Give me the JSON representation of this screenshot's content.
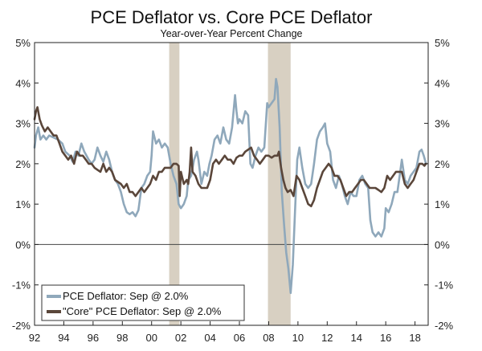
{
  "chart_data": {
    "type": "line",
    "title": "PCE Deflator vs. Core PCE Deflator",
    "subtitle": "Year-over-Year Percent Change",
    "y_ticks": [
      "5%",
      "4%",
      "3%",
      "2%",
      "1%",
      "0%",
      "-1%",
      "-2%"
    ],
    "y_tick_values": [
      5,
      4,
      3,
      2,
      1,
      0,
      -1,
      -2
    ],
    "ylim": [
      -2,
      5
    ],
    "x_ticks": [
      "92",
      "94",
      "96",
      "98",
      "00",
      "02",
      "04",
      "06",
      "08",
      "10",
      "12",
      "14",
      "16",
      "18"
    ],
    "x_tick_values": [
      1992,
      1994,
      1996,
      1998,
      2000,
      2002,
      2004,
      2006,
      2008,
      2010,
      2012,
      2014,
      2016,
      2018
    ],
    "xlim": [
      1992,
      2018.9
    ],
    "recessions": [
      [
        2001.2,
        2001.9
      ],
      [
        2007.95,
        2009.5
      ]
    ],
    "legend_position": "bottom-left",
    "series": [
      {
        "name": "PCE Deflator: Sep @ 2.0%",
        "color": "#8fa8bb",
        "points": [
          [
            1992.0,
            2.4
          ],
          [
            1992.1,
            2.7
          ],
          [
            1992.25,
            2.9
          ],
          [
            1992.4,
            2.6
          ],
          [
            1992.6,
            2.7
          ],
          [
            1992.8,
            2.6
          ],
          [
            1993.0,
            2.7
          ],
          [
            1993.3,
            2.65
          ],
          [
            1993.6,
            2.6
          ],
          [
            1993.9,
            2.5
          ],
          [
            1994.1,
            2.3
          ],
          [
            1994.4,
            2.2
          ],
          [
            1994.6,
            2.05
          ],
          [
            1994.8,
            2.3
          ],
          [
            1995.0,
            2.2
          ],
          [
            1995.2,
            2.5
          ],
          [
            1995.4,
            2.3
          ],
          [
            1995.7,
            2.1
          ],
          [
            1995.9,
            2.0
          ],
          [
            1996.1,
            2.1
          ],
          [
            1996.3,
            2.4
          ],
          [
            1996.5,
            2.2
          ],
          [
            1996.7,
            2.05
          ],
          [
            1996.9,
            2.3
          ],
          [
            1997.1,
            2.1
          ],
          [
            1997.3,
            1.8
          ],
          [
            1997.5,
            1.6
          ],
          [
            1997.7,
            1.5
          ],
          [
            1997.9,
            1.3
          ],
          [
            1998.1,
            1.0
          ],
          [
            1998.3,
            0.8
          ],
          [
            1998.5,
            0.75
          ],
          [
            1998.7,
            0.8
          ],
          [
            1998.9,
            0.7
          ],
          [
            1999.1,
            0.85
          ],
          [
            1999.3,
            1.4
          ],
          [
            1999.5,
            1.5
          ],
          [
            1999.7,
            1.7
          ],
          [
            1999.9,
            1.8
          ],
          [
            2000.0,
            2.2
          ],
          [
            2000.1,
            2.8
          ],
          [
            2000.3,
            2.5
          ],
          [
            2000.5,
            2.6
          ],
          [
            2000.7,
            2.4
          ],
          [
            2000.9,
            2.5
          ],
          [
            2001.1,
            2.4
          ],
          [
            2001.3,
            2.0
          ],
          [
            2001.5,
            1.7
          ],
          [
            2001.7,
            1.5
          ],
          [
            2001.85,
            1.0
          ],
          [
            2002.0,
            0.9
          ],
          [
            2002.2,
            1.0
          ],
          [
            2002.4,
            1.2
          ],
          [
            2002.5,
            1.6
          ],
          [
            2002.7,
            1.7
          ],
          [
            2002.9,
            2.1
          ],
          [
            2003.1,
            2.3
          ],
          [
            2003.2,
            2.1
          ],
          [
            2003.4,
            1.5
          ],
          [
            2003.6,
            1.8
          ],
          [
            2003.8,
            1.7
          ],
          [
            2003.95,
            2.0
          ],
          [
            2004.1,
            2.2
          ],
          [
            2004.3,
            2.6
          ],
          [
            2004.5,
            2.7
          ],
          [
            2004.7,
            2.5
          ],
          [
            2004.9,
            2.9
          ],
          [
            2005.1,
            2.6
          ],
          [
            2005.3,
            2.5
          ],
          [
            2005.5,
            2.9
          ],
          [
            2005.7,
            3.7
          ],
          [
            2005.8,
            3.3
          ],
          [
            2005.9,
            3.0
          ],
          [
            2006.0,
            3.1
          ],
          [
            2006.2,
            3.0
          ],
          [
            2006.4,
            3.3
          ],
          [
            2006.6,
            3.2
          ],
          [
            2006.75,
            2.0
          ],
          [
            2006.9,
            1.9
          ],
          [
            2007.1,
            2.2
          ],
          [
            2007.3,
            2.4
          ],
          [
            2007.5,
            2.3
          ],
          [
            2007.7,
            2.4
          ],
          [
            2007.9,
            3.5
          ],
          [
            2008.0,
            3.4
          ],
          [
            2008.2,
            3.5
          ],
          [
            2008.4,
            3.6
          ],
          [
            2008.5,
            4.1
          ],
          [
            2008.6,
            3.9
          ],
          [
            2008.75,
            2.9
          ],
          [
            2008.9,
            1.3
          ],
          [
            2009.05,
            0.5
          ],
          [
            2009.2,
            -0.2
          ],
          [
            2009.35,
            -0.6
          ],
          [
            2009.5,
            -1.2
          ],
          [
            2009.65,
            -0.5
          ],
          [
            2009.8,
            0.8
          ],
          [
            2009.95,
            2.1
          ],
          [
            2010.1,
            2.4
          ],
          [
            2010.3,
            1.9
          ],
          [
            2010.5,
            1.5
          ],
          [
            2010.7,
            1.4
          ],
          [
            2010.9,
            1.5
          ],
          [
            2011.1,
            2.0
          ],
          [
            2011.3,
            2.6
          ],
          [
            2011.5,
            2.8
          ],
          [
            2011.7,
            2.9
          ],
          [
            2011.85,
            3.0
          ],
          [
            2012.0,
            2.5
          ],
          [
            2012.2,
            2.3
          ],
          [
            2012.4,
            1.6
          ],
          [
            2012.6,
            1.4
          ],
          [
            2012.8,
            1.7
          ],
          [
            2013.0,
            1.5
          ],
          [
            2013.2,
            1.2
          ],
          [
            2013.4,
            1.0
          ],
          [
            2013.6,
            1.3
          ],
          [
            2013.8,
            1.2
          ],
          [
            2014.0,
            1.2
          ],
          [
            2014.2,
            1.6
          ],
          [
            2014.4,
            1.7
          ],
          [
            2014.6,
            1.5
          ],
          [
            2014.8,
            1.4
          ],
          [
            2014.95,
            0.6
          ],
          [
            2015.1,
            0.3
          ],
          [
            2015.3,
            0.2
          ],
          [
            2015.5,
            0.3
          ],
          [
            2015.7,
            0.2
          ],
          [
            2015.9,
            0.4
          ],
          [
            2016.0,
            0.9
          ],
          [
            2016.2,
            0.8
          ],
          [
            2016.4,
            1.0
          ],
          [
            2016.6,
            1.3
          ],
          [
            2016.8,
            1.3
          ],
          [
            2016.95,
            1.7
          ],
          [
            2017.1,
            2.1
          ],
          [
            2017.3,
            1.6
          ],
          [
            2017.5,
            1.5
          ],
          [
            2017.7,
            1.7
          ],
          [
            2017.9,
            1.8
          ],
          [
            2018.1,
            1.9
          ],
          [
            2018.3,
            2.3
          ],
          [
            2018.45,
            2.35
          ],
          [
            2018.6,
            2.2
          ],
          [
            2018.75,
            2.0
          ]
        ]
      },
      {
        "name": "\"Core\" PCE Deflator: Sep @ 2.0%",
        "color": "#5a463a",
        "points": [
          [
            1992.0,
            3.1
          ],
          [
            1992.1,
            3.3
          ],
          [
            1992.2,
            3.4
          ],
          [
            1992.35,
            3.1
          ],
          [
            1992.5,
            2.95
          ],
          [
            1992.7,
            2.8
          ],
          [
            1992.9,
            2.9
          ],
          [
            1993.1,
            2.8
          ],
          [
            1993.3,
            2.7
          ],
          [
            1993.5,
            2.7
          ],
          [
            1993.7,
            2.5
          ],
          [
            1993.9,
            2.3
          ],
          [
            1994.1,
            2.2
          ],
          [
            1994.3,
            2.1
          ],
          [
            1994.5,
            2.2
          ],
          [
            1994.7,
            2.0
          ],
          [
            1994.9,
            2.3
          ],
          [
            1995.1,
            2.2
          ],
          [
            1995.3,
            2.2
          ],
          [
            1995.5,
            2.1
          ],
          [
            1995.7,
            2.0
          ],
          [
            1995.9,
            2.0
          ],
          [
            1996.1,
            1.9
          ],
          [
            1996.3,
            1.85
          ],
          [
            1996.5,
            1.8
          ],
          [
            1996.7,
            2.0
          ],
          [
            1996.9,
            1.8
          ],
          [
            1997.1,
            1.9
          ],
          [
            1997.3,
            1.8
          ],
          [
            1997.5,
            1.6
          ],
          [
            1997.7,
            1.55
          ],
          [
            1997.9,
            1.5
          ],
          [
            1998.1,
            1.4
          ],
          [
            1998.3,
            1.5
          ],
          [
            1998.5,
            1.3
          ],
          [
            1998.7,
            1.3
          ],
          [
            1998.9,
            1.2
          ],
          [
            1999.1,
            1.3
          ],
          [
            1999.3,
            1.4
          ],
          [
            1999.5,
            1.3
          ],
          [
            1999.7,
            1.4
          ],
          [
            1999.9,
            1.5
          ],
          [
            2000.1,
            1.7
          ],
          [
            2000.3,
            1.6
          ],
          [
            2000.5,
            1.8
          ],
          [
            2000.7,
            1.8
          ],
          [
            2000.9,
            1.9
          ],
          [
            2001.1,
            1.9
          ],
          [
            2001.3,
            1.9
          ],
          [
            2001.5,
            2.0
          ],
          [
            2001.7,
            2.0
          ],
          [
            2001.85,
            1.95
          ],
          [
            2001.92,
            1.2
          ],
          [
            2002.0,
            1.8
          ],
          [
            2002.2,
            1.5
          ],
          [
            2002.4,
            1.6
          ],
          [
            2002.5,
            1.5
          ],
          [
            2002.6,
            1.8
          ],
          [
            2002.7,
            2.4
          ],
          [
            2002.8,
            1.8
          ],
          [
            2003.0,
            1.7
          ],
          [
            2003.2,
            1.5
          ],
          [
            2003.4,
            1.4
          ],
          [
            2003.6,
            1.4
          ],
          [
            2003.8,
            1.4
          ],
          [
            2004.0,
            1.6
          ],
          [
            2004.2,
            2.0
          ],
          [
            2004.4,
            2.1
          ],
          [
            2004.6,
            2.0
          ],
          [
            2004.8,
            2.1
          ],
          [
            2005.0,
            2.2
          ],
          [
            2005.2,
            2.1
          ],
          [
            2005.4,
            2.1
          ],
          [
            2005.6,
            2.0
          ],
          [
            2005.8,
            2.15
          ],
          [
            2006.0,
            2.2
          ],
          [
            2006.2,
            2.2
          ],
          [
            2006.4,
            2.3
          ],
          [
            2006.6,
            2.35
          ],
          [
            2006.8,
            2.4
          ],
          [
            2007.0,
            2.2
          ],
          [
            2007.2,
            2.1
          ],
          [
            2007.4,
            2.0
          ],
          [
            2007.6,
            2.1
          ],
          [
            2007.8,
            2.2
          ],
          [
            2008.0,
            2.2
          ],
          [
            2008.2,
            2.15
          ],
          [
            2008.4,
            2.2
          ],
          [
            2008.6,
            2.2
          ],
          [
            2008.7,
            2.3
          ],
          [
            2008.85,
            1.9
          ],
          [
            2009.0,
            1.6
          ],
          [
            2009.15,
            1.4
          ],
          [
            2009.3,
            1.3
          ],
          [
            2009.5,
            1.35
          ],
          [
            2009.7,
            1.2
          ],
          [
            2009.9,
            1.7
          ],
          [
            2010.1,
            1.6
          ],
          [
            2010.3,
            1.4
          ],
          [
            2010.5,
            1.2
          ],
          [
            2010.7,
            1.0
          ],
          [
            2010.9,
            0.95
          ],
          [
            2011.1,
            1.1
          ],
          [
            2011.3,
            1.4
          ],
          [
            2011.5,
            1.6
          ],
          [
            2011.7,
            1.8
          ],
          [
            2011.9,
            1.9
          ],
          [
            2012.1,
            2.0
          ],
          [
            2012.3,
            1.9
          ],
          [
            2012.5,
            1.7
          ],
          [
            2012.7,
            1.7
          ],
          [
            2012.9,
            1.6
          ],
          [
            2013.1,
            1.4
          ],
          [
            2013.3,
            1.2
          ],
          [
            2013.5,
            1.3
          ],
          [
            2013.7,
            1.3
          ],
          [
            2013.9,
            1.4
          ],
          [
            2014.1,
            1.5
          ],
          [
            2014.3,
            1.6
          ],
          [
            2014.5,
            1.6
          ],
          [
            2014.7,
            1.5
          ],
          [
            2014.9,
            1.4
          ],
          [
            2015.1,
            1.4
          ],
          [
            2015.3,
            1.4
          ],
          [
            2015.5,
            1.35
          ],
          [
            2015.7,
            1.3
          ],
          [
            2015.9,
            1.4
          ],
          [
            2016.1,
            1.7
          ],
          [
            2016.3,
            1.6
          ],
          [
            2016.5,
            1.7
          ],
          [
            2016.7,
            1.8
          ],
          [
            2016.9,
            1.8
          ],
          [
            2017.1,
            1.8
          ],
          [
            2017.3,
            1.5
          ],
          [
            2017.5,
            1.4
          ],
          [
            2017.7,
            1.5
          ],
          [
            2017.9,
            1.6
          ],
          [
            2018.1,
            1.8
          ],
          [
            2018.3,
            2.0
          ],
          [
            2018.5,
            2.0
          ],
          [
            2018.65,
            1.95
          ],
          [
            2018.75,
            2.0
          ]
        ]
      }
    ]
  }
}
